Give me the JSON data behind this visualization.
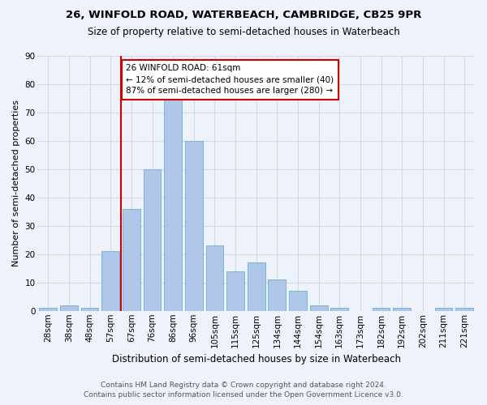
{
  "title1": "26, WINFOLD ROAD, WATERBEACH, CAMBRIDGE, CB25 9PR",
  "title2": "Size of property relative to semi-detached houses in Waterbeach",
  "xlabel": "Distribution of semi-detached houses by size in Waterbeach",
  "ylabel": "Number of semi-detached properties",
  "footnote1": "Contains HM Land Registry data © Crown copyright and database right 2024.",
  "footnote2": "Contains public sector information licensed under the Open Government Licence v3.0.",
  "bar_labels": [
    "28sqm",
    "38sqm",
    "48sqm",
    "57sqm",
    "67sqm",
    "76sqm",
    "86sqm",
    "96sqm",
    "105sqm",
    "115sqm",
    "125sqm",
    "134sqm",
    "144sqm",
    "154sqm",
    "163sqm",
    "173sqm",
    "182sqm",
    "192sqm",
    "202sqm",
    "211sqm",
    "221sqm"
  ],
  "bar_values": [
    1,
    2,
    1,
    21,
    36,
    50,
    75,
    60,
    23,
    14,
    17,
    11,
    7,
    2,
    1,
    0,
    1,
    1,
    0,
    1,
    1
  ],
  "bar_color": "#aec6e8",
  "bar_edge_color": "#7ab4d8",
  "grid_color": "#d0d8ec",
  "background_color": "#eef2fa",
  "annotation_text": "26 WINFOLD ROAD: 61sqm\n← 12% of semi-detached houses are smaller (40)\n87% of semi-detached houses are larger (280) →",
  "vline_x_index": 3.5,
  "vline_color": "#cc0000",
  "annotation_box_edge": "#cc0000",
  "ylim": [
    0,
    90
  ],
  "yticks": [
    0,
    10,
    20,
    30,
    40,
    50,
    60,
    70,
    80,
    90
  ],
  "title1_fontsize": 9.5,
  "title2_fontsize": 8.5,
  "ylabel_fontsize": 8,
  "xlabel_fontsize": 8.5,
  "tick_fontsize": 7.5,
  "annot_fontsize": 7.5,
  "footnote_fontsize": 6.5
}
